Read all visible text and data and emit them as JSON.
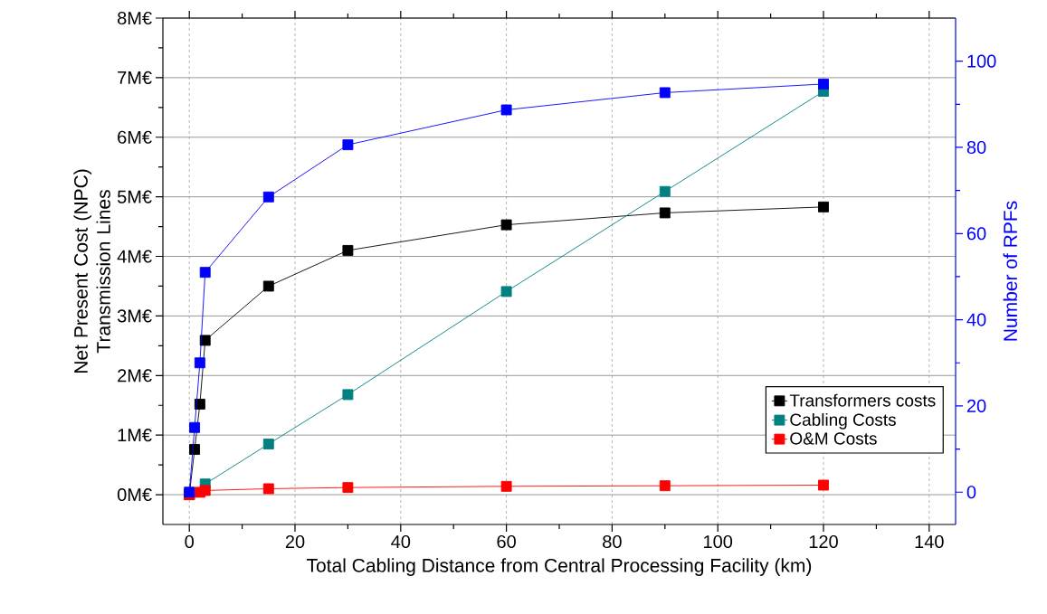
{
  "chart_data": {
    "type": "line",
    "xlabel": "Total Cabling Distance from Central Processing Facility (km)",
    "ylabel": "Net Present Cost (NPC) Transmission Lines",
    "y2label": "Number of RPFs",
    "x": [
      0,
      1,
      2,
      3,
      15,
      30,
      60,
      90,
      120
    ],
    "series": [
      {
        "name": "Transformers costs",
        "color": "#000000",
        "values": [
          0,
          0.76,
          1.52,
          2.59,
          3.5,
          4.1,
          4.53,
          4.73,
          4.83
        ]
      },
      {
        "name": "Cabling Costs",
        "color": "#008080",
        "values": [
          0,
          null,
          null,
          0.18,
          0.85,
          1.68,
          3.41,
          5.09,
          6.77
        ]
      },
      {
        "name": "O&M Costs",
        "color": "#ff0000",
        "values": [
          0,
          null,
          0.04,
          0.07,
          0.1,
          0.12,
          0.14,
          0.15,
          0.16
        ]
      },
      {
        "color": "#0000ff",
        "axis": "y2",
        "values": [
          0,
          15,
          30,
          51,
          68.5,
          80.6,
          88.7,
          92.7,
          94.7
        ]
      }
    ],
    "xlim": [
      -5,
      145
    ],
    "xticks": [
      0,
      20,
      40,
      60,
      80,
      100,
      120,
      140
    ],
    "ylim": [
      -0.5,
      8
    ],
    "yticks": [
      {
        "value": 0,
        "label": "0M€"
      },
      {
        "value": 1,
        "label": "1M€"
      },
      {
        "value": 2,
        "label": "2M€"
      },
      {
        "value": 3,
        "label": "3M€"
      },
      {
        "value": 4,
        "label": "4M€"
      },
      {
        "value": 5,
        "label": "5M€"
      },
      {
        "value": 6,
        "label": "6M€"
      },
      {
        "value": 7,
        "label": "7M€"
      },
      {
        "value": 8,
        "label": "8M€"
      }
    ],
    "y2lim": [
      -7.5,
      110
    ],
    "y2ticks": [
      0,
      20,
      40,
      60,
      80,
      100
    ],
    "grid": true,
    "legend": "bottom right",
    "marker": "square",
    "line_style": "solid"
  }
}
